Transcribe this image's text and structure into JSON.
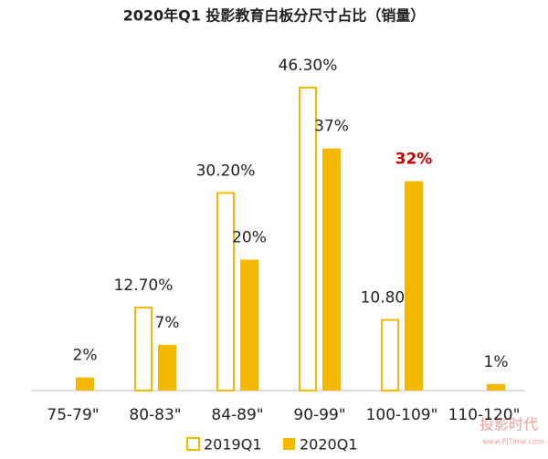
{
  "chart_data": {
    "type": "bar",
    "title": "2020年Q1 投影教育白板分尺寸占比（销量）",
    "categories": [
      "75-79\"",
      "80-83\"",
      "84-89\"",
      "90-99\"",
      "100-109\"",
      "110-120\""
    ],
    "series": [
      {
        "name": "2019Q1",
        "color": "#f5b800",
        "fill": "none",
        "values": [
          null,
          12.7,
          30.2,
          46.3,
          10.8,
          null
        ],
        "value_labels": [
          null,
          "12.70%",
          "30.20%",
          "46.30%",
          "10.80%",
          null
        ]
      },
      {
        "name": "2020Q1",
        "color": "#f5b800",
        "fill": "solid",
        "values": [
          2,
          7,
          20,
          37,
          32,
          1
        ],
        "value_labels": [
          "2%",
          "7%",
          "20%",
          "37%",
          "32%",
          "1%"
        ],
        "highlight_index": 4,
        "highlight_color": "#c00000"
      }
    ],
    "watermark": [
      "投影时代",
      "www.PjTime.com"
    ]
  }
}
